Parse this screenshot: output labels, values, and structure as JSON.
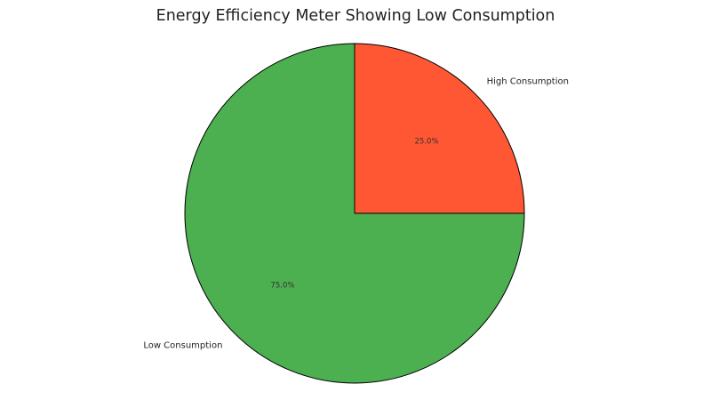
{
  "chart_data": {
    "type": "pie",
    "title": "Energy Efficiency Meter Showing Low Consumption",
    "labels": [
      "Low Consumption",
      "High Consumption"
    ],
    "values": [
      75,
      25
    ],
    "percent_labels": [
      "75.0%",
      "25.0%"
    ],
    "colors": [
      "#4caf50",
      "#ff5733"
    ],
    "start_angle": 90,
    "direction": "counterclockwise",
    "legend": "none"
  }
}
